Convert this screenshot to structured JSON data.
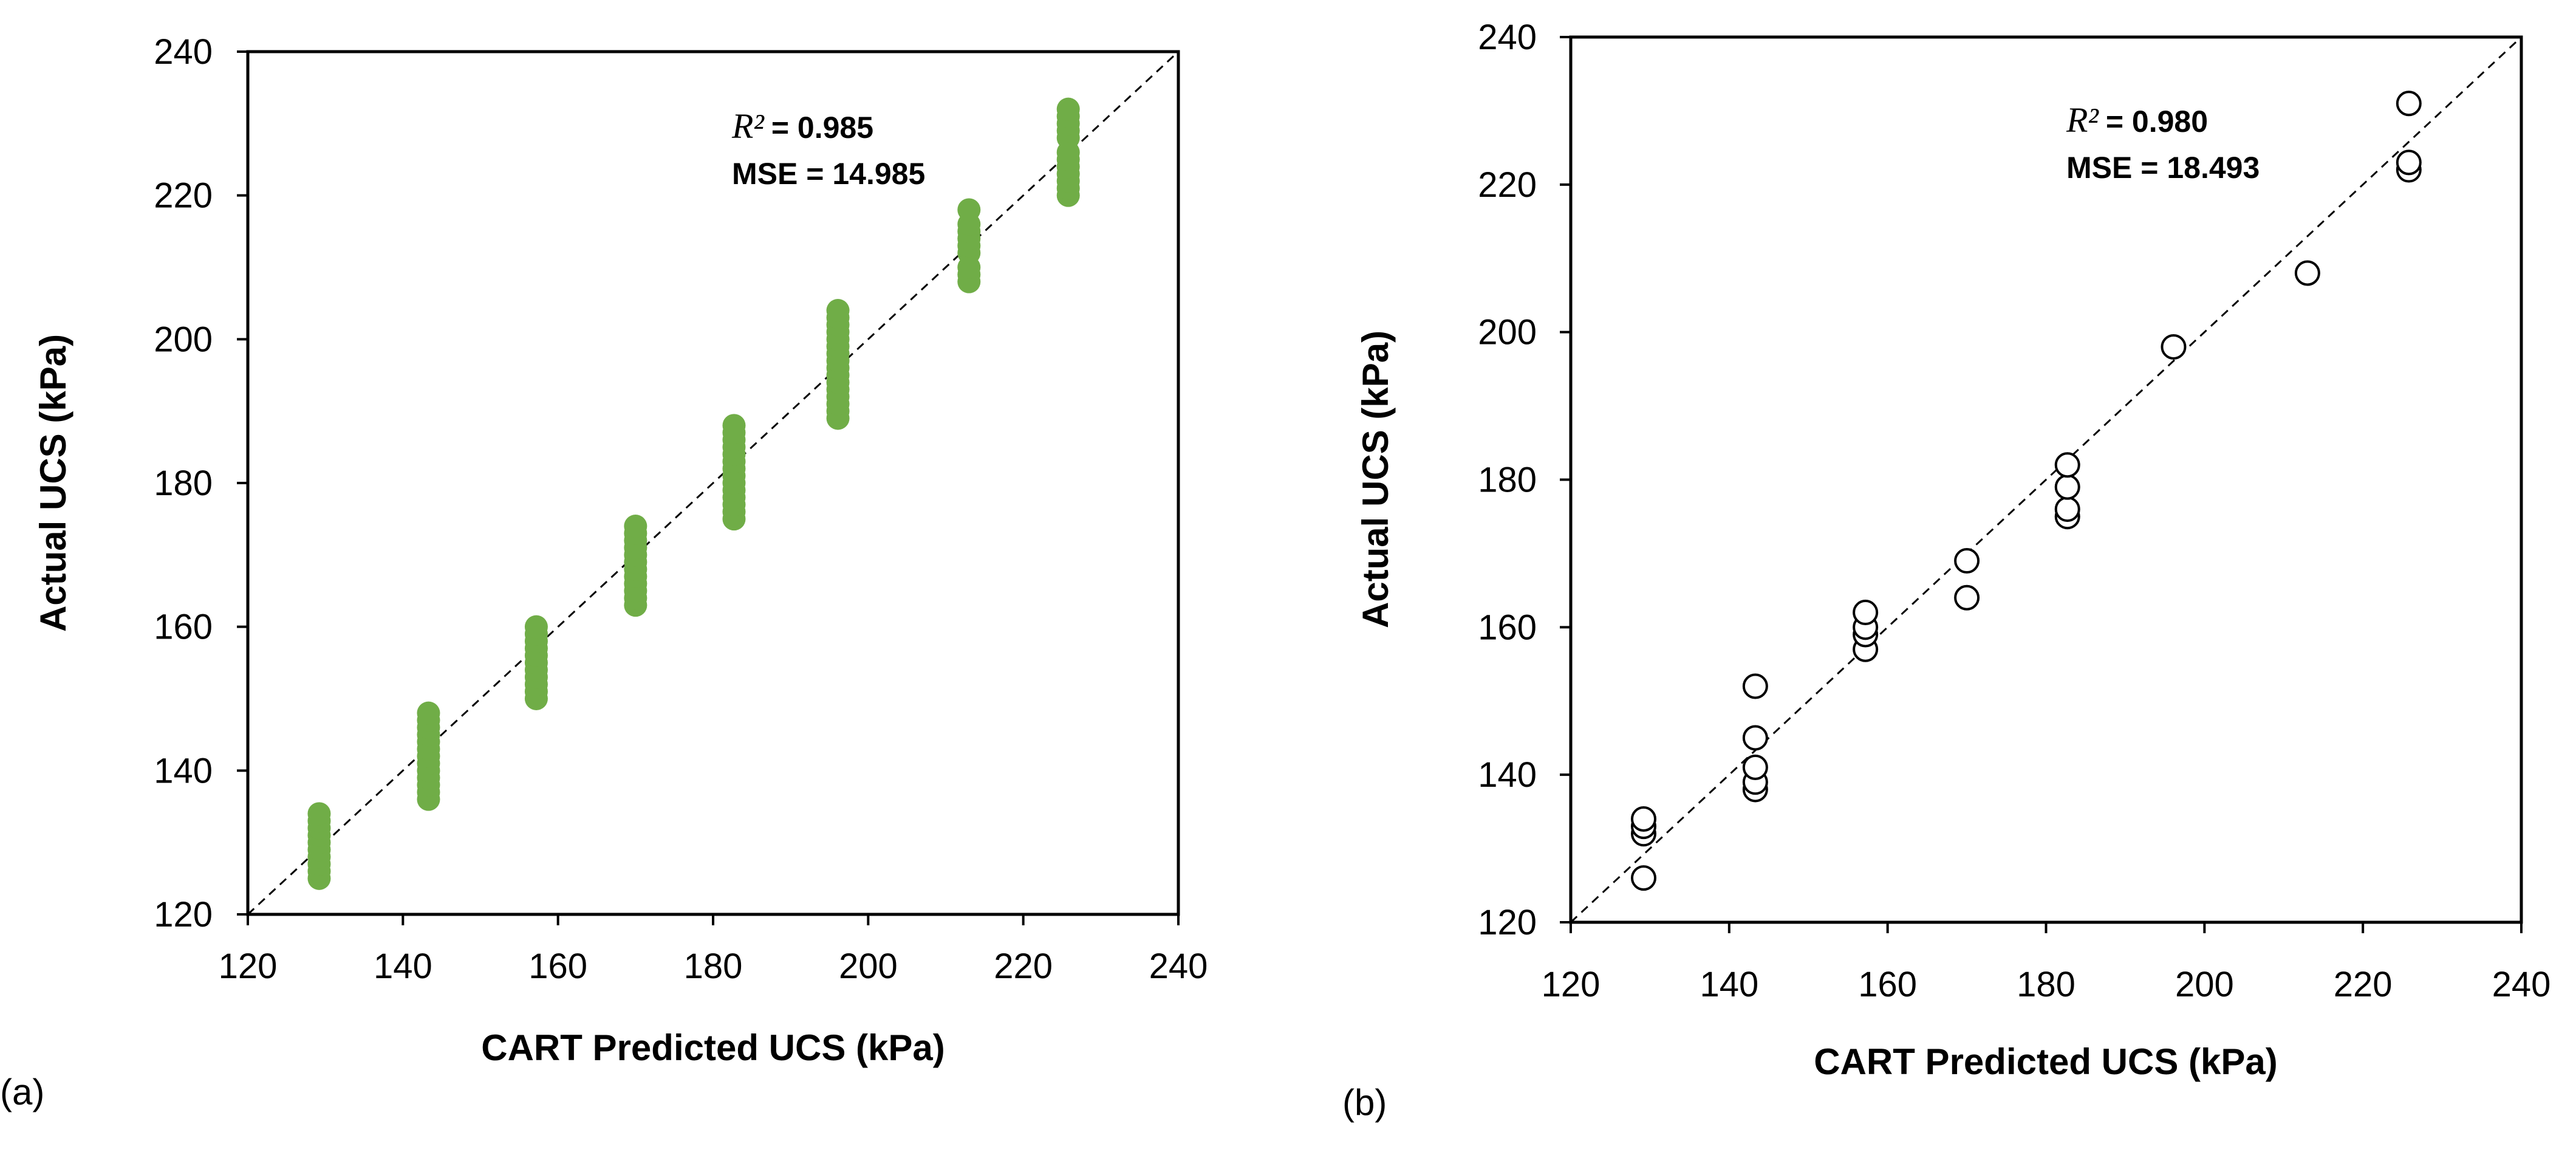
{
  "chart_data": [
    {
      "type": "scatter",
      "panel_label": "(a)",
      "xlabel": "CART Predicted UCS (kPa)",
      "ylabel": "Actual UCS (kPa)",
      "xlim": [
        120,
        240
      ],
      "ylim": [
        120,
        240
      ],
      "xticks": [
        120,
        140,
        160,
        180,
        200,
        220,
        240
      ],
      "yticks": [
        120,
        140,
        160,
        180,
        200,
        220,
        240
      ],
      "reference_line": "y = x (dashed)",
      "marker": "filled",
      "marker_color": "#70ad47",
      "annotation": {
        "r2_symbol": "R²",
        "r2_value": "= 0.985",
        "mse": "MSE = 14.985"
      },
      "points": [
        {
          "x": 129.2,
          "y": 125
        },
        {
          "x": 129.2,
          "y": 126
        },
        {
          "x": 129.2,
          "y": 127
        },
        {
          "x": 129.2,
          "y": 128
        },
        {
          "x": 129.2,
          "y": 129
        },
        {
          "x": 129.2,
          "y": 130
        },
        {
          "x": 129.2,
          "y": 131
        },
        {
          "x": 129.2,
          "y": 132
        },
        {
          "x": 129.2,
          "y": 133
        },
        {
          "x": 129.2,
          "y": 134
        },
        {
          "x": 143.3,
          "y": 136
        },
        {
          "x": 143.3,
          "y": 137
        },
        {
          "x": 143.3,
          "y": 138
        },
        {
          "x": 143.3,
          "y": 139
        },
        {
          "x": 143.3,
          "y": 140
        },
        {
          "x": 143.3,
          "y": 141
        },
        {
          "x": 143.3,
          "y": 142
        },
        {
          "x": 143.3,
          "y": 143
        },
        {
          "x": 143.3,
          "y": 144
        },
        {
          "x": 143.3,
          "y": 145
        },
        {
          "x": 143.3,
          "y": 146
        },
        {
          "x": 143.3,
          "y": 147
        },
        {
          "x": 143.3,
          "y": 148
        },
        {
          "x": 157.2,
          "y": 150
        },
        {
          "x": 157.2,
          "y": 151
        },
        {
          "x": 157.2,
          "y": 152
        },
        {
          "x": 157.2,
          "y": 153
        },
        {
          "x": 157.2,
          "y": 154
        },
        {
          "x": 157.2,
          "y": 155
        },
        {
          "x": 157.2,
          "y": 156
        },
        {
          "x": 157.2,
          "y": 157
        },
        {
          "x": 157.2,
          "y": 158
        },
        {
          "x": 157.2,
          "y": 159
        },
        {
          "x": 157.2,
          "y": 160
        },
        {
          "x": 170,
          "y": 163
        },
        {
          "x": 170,
          "y": 164
        },
        {
          "x": 170,
          "y": 165
        },
        {
          "x": 170,
          "y": 166
        },
        {
          "x": 170,
          "y": 167
        },
        {
          "x": 170,
          "y": 168
        },
        {
          "x": 170,
          "y": 169
        },
        {
          "x": 170,
          "y": 170
        },
        {
          "x": 170,
          "y": 171
        },
        {
          "x": 170,
          "y": 172
        },
        {
          "x": 170,
          "y": 173
        },
        {
          "x": 170,
          "y": 174
        },
        {
          "x": 182.7,
          "y": 175
        },
        {
          "x": 182.7,
          "y": 176
        },
        {
          "x": 182.7,
          "y": 177
        },
        {
          "x": 182.7,
          "y": 178
        },
        {
          "x": 182.7,
          "y": 179
        },
        {
          "x": 182.7,
          "y": 180
        },
        {
          "x": 182.7,
          "y": 181
        },
        {
          "x": 182.7,
          "y": 182
        },
        {
          "x": 182.7,
          "y": 183
        },
        {
          "x": 182.7,
          "y": 184
        },
        {
          "x": 182.7,
          "y": 185
        },
        {
          "x": 182.7,
          "y": 186
        },
        {
          "x": 182.7,
          "y": 187
        },
        {
          "x": 182.7,
          "y": 188
        },
        {
          "x": 196.1,
          "y": 189
        },
        {
          "x": 196.1,
          "y": 190
        },
        {
          "x": 196.1,
          "y": 191
        },
        {
          "x": 196.1,
          "y": 192
        },
        {
          "x": 196.1,
          "y": 193
        },
        {
          "x": 196.1,
          "y": 194
        },
        {
          "x": 196.1,
          "y": 195
        },
        {
          "x": 196.1,
          "y": 196
        },
        {
          "x": 196.1,
          "y": 197
        },
        {
          "x": 196.1,
          "y": 198
        },
        {
          "x": 196.1,
          "y": 199
        },
        {
          "x": 196.1,
          "y": 200
        },
        {
          "x": 196.1,
          "y": 201
        },
        {
          "x": 196.1,
          "y": 202
        },
        {
          "x": 196.1,
          "y": 203
        },
        {
          "x": 196.1,
          "y": 204
        },
        {
          "x": 213,
          "y": 208
        },
        {
          "x": 213,
          "y": 209
        },
        {
          "x": 213,
          "y": 210
        },
        {
          "x": 213,
          "y": 212
        },
        {
          "x": 213,
          "y": 213
        },
        {
          "x": 213,
          "y": 214
        },
        {
          "x": 213,
          "y": 215
        },
        {
          "x": 213,
          "y": 216
        },
        {
          "x": 213,
          "y": 218
        },
        {
          "x": 225.8,
          "y": 220
        },
        {
          "x": 225.8,
          "y": 221
        },
        {
          "x": 225.8,
          "y": 222
        },
        {
          "x": 225.8,
          "y": 223
        },
        {
          "x": 225.8,
          "y": 224
        },
        {
          "x": 225.8,
          "y": 225
        },
        {
          "x": 225.8,
          "y": 226
        },
        {
          "x": 225.8,
          "y": 228
        },
        {
          "x": 225.8,
          "y": 229
        },
        {
          "x": 225.8,
          "y": 230
        },
        {
          "x": 225.8,
          "y": 231
        },
        {
          "x": 225.8,
          "y": 232
        }
      ]
    },
    {
      "type": "scatter",
      "panel_label": "(b)",
      "xlabel": "CART Predicted UCS (kPa)",
      "ylabel": "Actual UCS (kPa)",
      "xlim": [
        120,
        240
      ],
      "ylim": [
        120,
        240
      ],
      "xticks": [
        120,
        140,
        160,
        180,
        200,
        220,
        240
      ],
      "yticks": [
        120,
        140,
        160,
        180,
        200,
        220,
        240
      ],
      "reference_line": "y = x (dashed)",
      "marker": "hollow",
      "marker_color": "#000000",
      "annotation": {
        "r2_symbol": "R²",
        "r2_value": "= 0.980",
        "mse": "MSE = 18.493"
      },
      "points": [
        {
          "x": 129.2,
          "y": 126
        },
        {
          "x": 129.2,
          "y": 132
        },
        {
          "x": 129.2,
          "y": 133
        },
        {
          "x": 129.2,
          "y": 134
        },
        {
          "x": 143.3,
          "y": 138
        },
        {
          "x": 143.3,
          "y": 139
        },
        {
          "x": 143.3,
          "y": 141
        },
        {
          "x": 143.3,
          "y": 145
        },
        {
          "x": 143.3,
          "y": 152
        },
        {
          "x": 157.2,
          "y": 157
        },
        {
          "x": 157.2,
          "y": 159
        },
        {
          "x": 157.2,
          "y": 160
        },
        {
          "x": 157.2,
          "y": 162
        },
        {
          "x": 170,
          "y": 164
        },
        {
          "x": 170,
          "y": 169
        },
        {
          "x": 182.7,
          "y": 175
        },
        {
          "x": 182.7,
          "y": 176
        },
        {
          "x": 182.7,
          "y": 179
        },
        {
          "x": 182.7,
          "y": 182
        },
        {
          "x": 196.1,
          "y": 198
        },
        {
          "x": 213,
          "y": 208
        },
        {
          "x": 225.8,
          "y": 222
        },
        {
          "x": 225.8,
          "y": 223
        },
        {
          "x": 225.8,
          "y": 231
        }
      ]
    }
  ]
}
